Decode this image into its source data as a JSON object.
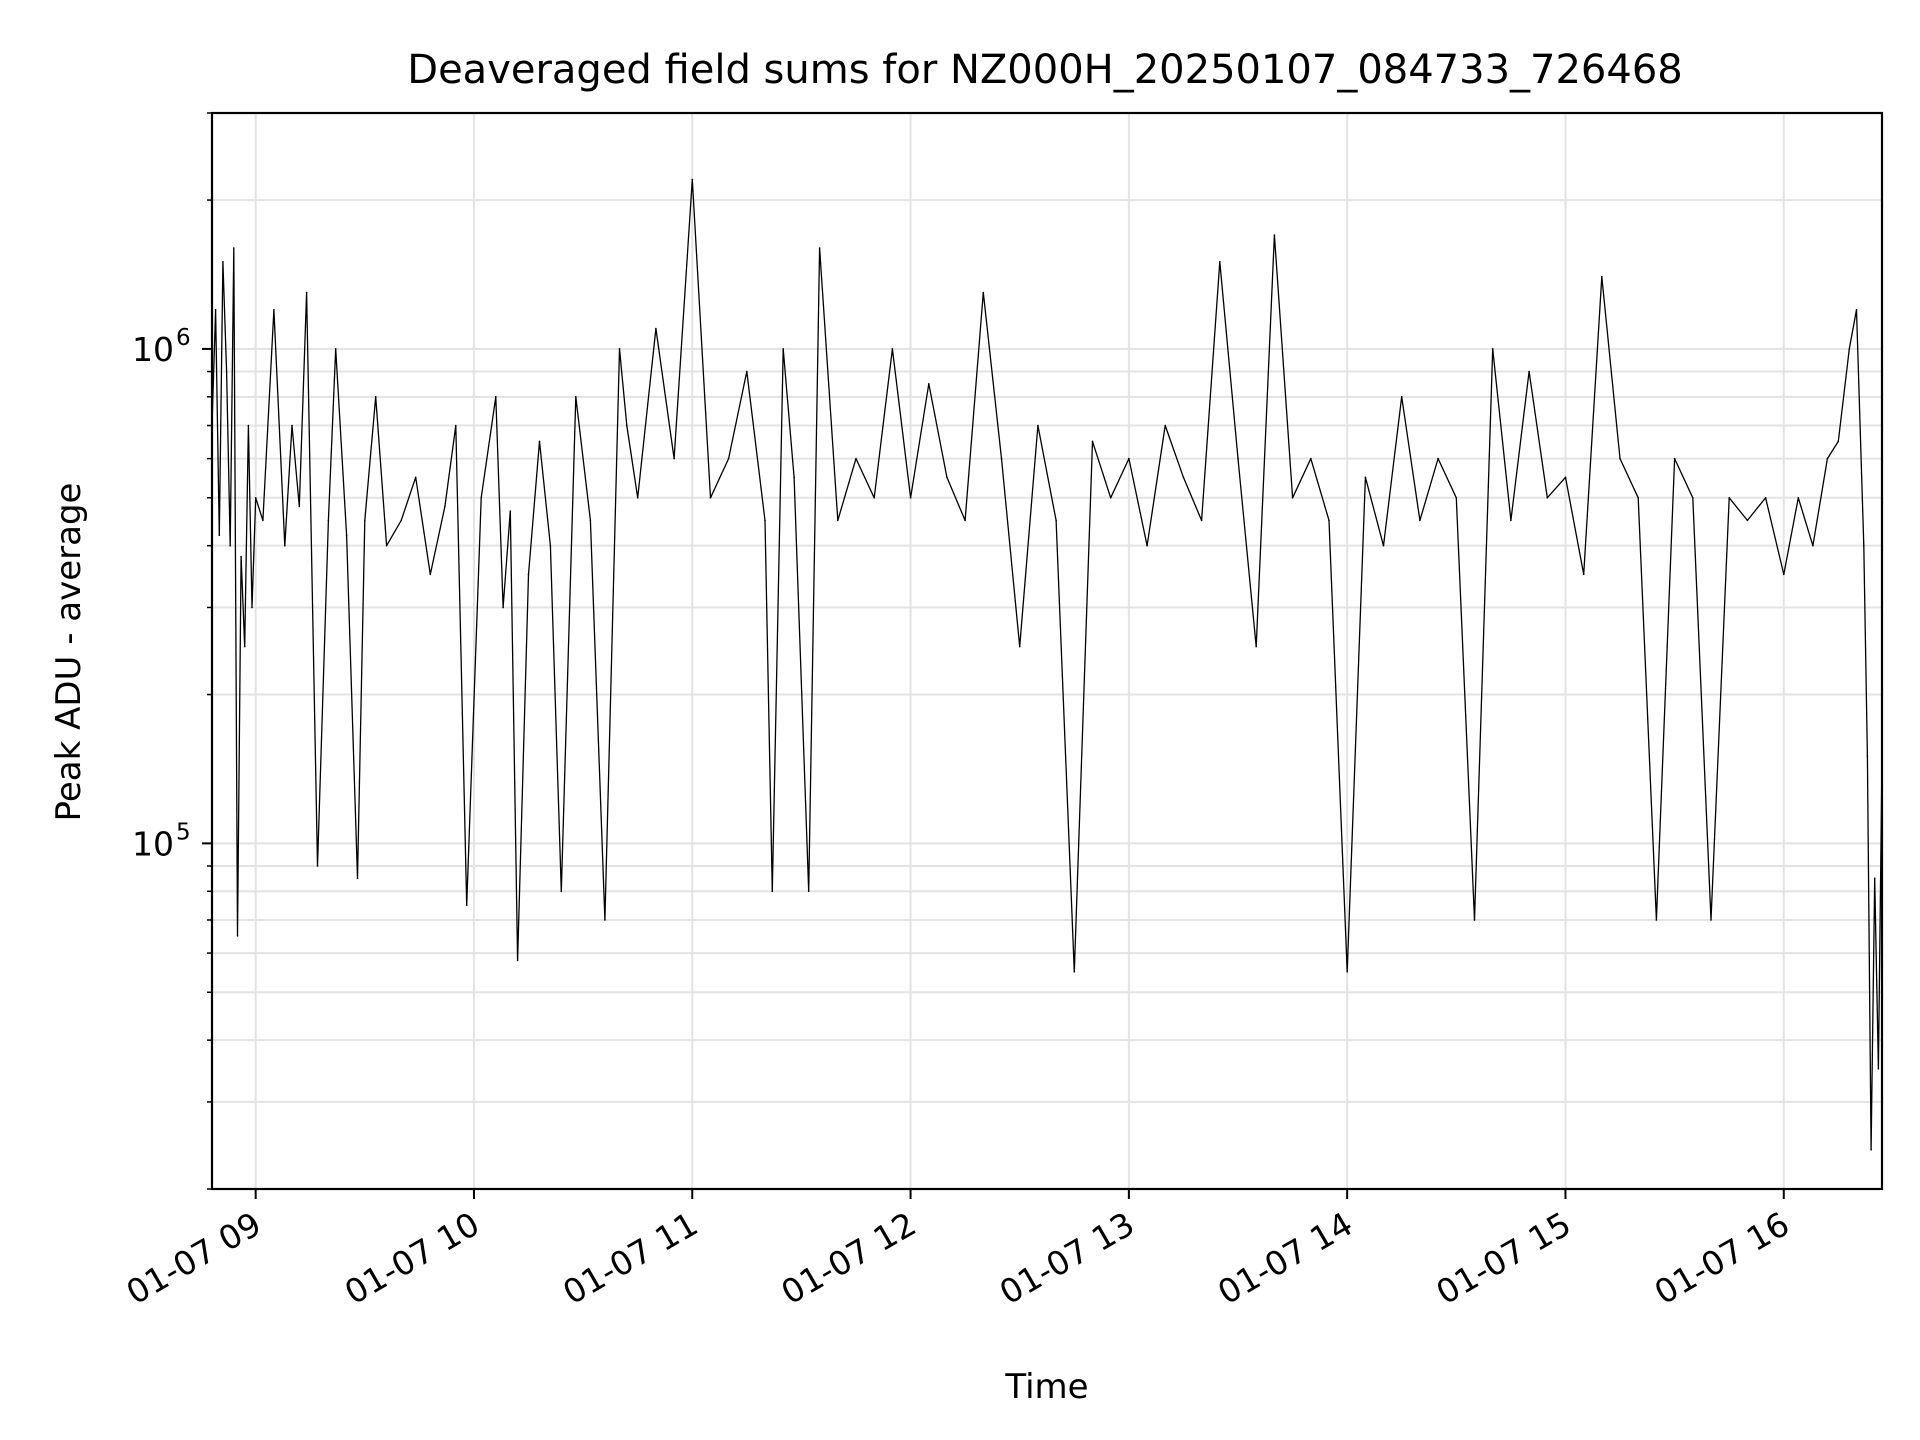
{
  "chart_data": {
    "type": "line",
    "title": "Deaveraged field sums for NZ000H_20250107_084733_726468",
    "xlabel": "Time",
    "ylabel": "Peak ADU - average",
    "yscale": "log",
    "ylim": [
      20000,
      3000000
    ],
    "xlim": [
      "2025-01-07 08:48",
      "2025-01-07 16:27"
    ],
    "grid": true,
    "line_color": "#000000",
    "grid_color": "#e3e3e3",
    "x_ticks": [
      {
        "value": "2025-01-07 09:00",
        "label": "01-07 09"
      },
      {
        "value": "2025-01-07 10:00",
        "label": "01-07 10"
      },
      {
        "value": "2025-01-07 11:00",
        "label": "01-07 11"
      },
      {
        "value": "2025-01-07 12:00",
        "label": "01-07 12"
      },
      {
        "value": "2025-01-07 13:00",
        "label": "01-07 13"
      },
      {
        "value": "2025-01-07 14:00",
        "label": "01-07 14"
      },
      {
        "value": "2025-01-07 15:00",
        "label": "01-07 15"
      },
      {
        "value": "2025-01-07 16:00",
        "label": "01-07 16"
      }
    ],
    "y_ticks": [
      {
        "value": 100000,
        "label_base": "10",
        "label_exp": "5"
      },
      {
        "value": 1000000,
        "label_base": "10",
        "label_exp": "6"
      }
    ],
    "series": [
      {
        "x": [
          "2025-01-07 08:48",
          "2025-01-07 08:49",
          "2025-01-07 08:50",
          "2025-01-07 08:51",
          "2025-01-07 08:52",
          "2025-01-07 08:53",
          "2025-01-07 08:54",
          "2025-01-07 08:55",
          "2025-01-07 08:56",
          "2025-01-07 08:57",
          "2025-01-07 08:58",
          "2025-01-07 08:59",
          "2025-01-07 09:00",
          "2025-01-07 09:02",
          "2025-01-07 09:05",
          "2025-01-07 09:08",
          "2025-01-07 09:10",
          "2025-01-07 09:12",
          "2025-01-07 09:14",
          "2025-01-07 09:17",
          "2025-01-07 09:20",
          "2025-01-07 09:22",
          "2025-01-07 09:25",
          "2025-01-07 09:28",
          "2025-01-07 09:30",
          "2025-01-07 09:33",
          "2025-01-07 09:36",
          "2025-01-07 09:40",
          "2025-01-07 09:44",
          "2025-01-07 09:48",
          "2025-01-07 09:52",
          "2025-01-07 09:55",
          "2025-01-07 09:58",
          "2025-01-07 10:02",
          "2025-01-07 10:06",
          "2025-01-07 10:08",
          "2025-01-07 10:10",
          "2025-01-07 10:12",
          "2025-01-07 10:15",
          "2025-01-07 10:18",
          "2025-01-07 10:21",
          "2025-01-07 10:24",
          "2025-01-07 10:28",
          "2025-01-07 10:32",
          "2025-01-07 10:36",
          "2025-01-07 10:40",
          "2025-01-07 10:42",
          "2025-01-07 10:45",
          "2025-01-07 10:50",
          "2025-01-07 10:55",
          "2025-01-07 11:00",
          "2025-01-07 11:05",
          "2025-01-07 11:10",
          "2025-01-07 11:15",
          "2025-01-07 11:20",
          "2025-01-07 11:22",
          "2025-01-07 11:25",
          "2025-01-07 11:28",
          "2025-01-07 11:32",
          "2025-01-07 11:35",
          "2025-01-07 11:40",
          "2025-01-07 11:45",
          "2025-01-07 11:50",
          "2025-01-07 11:55",
          "2025-01-07 12:00",
          "2025-01-07 12:05",
          "2025-01-07 12:10",
          "2025-01-07 12:15",
          "2025-01-07 12:20",
          "2025-01-07 12:25",
          "2025-01-07 12:30",
          "2025-01-07 12:35",
          "2025-01-07 12:40",
          "2025-01-07 12:45",
          "2025-01-07 12:50",
          "2025-01-07 12:55",
          "2025-01-07 13:00",
          "2025-01-07 13:05",
          "2025-01-07 13:10",
          "2025-01-07 13:15",
          "2025-01-07 13:20",
          "2025-01-07 13:25",
          "2025-01-07 13:30",
          "2025-01-07 13:35",
          "2025-01-07 13:40",
          "2025-01-07 13:45",
          "2025-01-07 13:50",
          "2025-01-07 13:55",
          "2025-01-07 14:00",
          "2025-01-07 14:05",
          "2025-01-07 14:10",
          "2025-01-07 14:15",
          "2025-01-07 14:20",
          "2025-01-07 14:25",
          "2025-01-07 14:30",
          "2025-01-07 14:35",
          "2025-01-07 14:40",
          "2025-01-07 14:45",
          "2025-01-07 14:50",
          "2025-01-07 14:55",
          "2025-01-07 15:00",
          "2025-01-07 15:05",
          "2025-01-07 15:10",
          "2025-01-07 15:15",
          "2025-01-07 15:20",
          "2025-01-07 15:25",
          "2025-01-07 15:30",
          "2025-01-07 15:35",
          "2025-01-07 15:40",
          "2025-01-07 15:45",
          "2025-01-07 15:50",
          "2025-01-07 15:55",
          "2025-01-07 16:00",
          "2025-01-07 16:04",
          "2025-01-07 16:08",
          "2025-01-07 16:12",
          "2025-01-07 16:15",
          "2025-01-07 16:18",
          "2025-01-07 16:20",
          "2025-01-07 16:22",
          "2025-01-07 16:23",
          "2025-01-07 16:24",
          "2025-01-07 16:25",
          "2025-01-07 16:26",
          "2025-01-07 16:27"
        ],
        "y": [
          700000,
          1200000,
          420000,
          1500000,
          900000,
          400000,
          1600000,
          65000,
          380000,
          250000,
          700000,
          300000,
          500000,
          450000,
          1200000,
          400000,
          700000,
          480000,
          1300000,
          90000,
          450000,
          1000000,
          420000,
          85000,
          450000,
          800000,
          400000,
          450000,
          550000,
          350000,
          480000,
          700000,
          75000,
          500000,
          800000,
          300000,
          470000,
          58000,
          350000,
          650000,
          400000,
          80000,
          800000,
          450000,
          70000,
          1000000,
          700000,
          500000,
          1100000,
          600000,
          2200000,
          500000,
          600000,
          900000,
          450000,
          80000,
          1000000,
          550000,
          80000,
          1600000,
          450000,
          600000,
          500000,
          1000000,
          500000,
          850000,
          550000,
          450000,
          1300000,
          600000,
          250000,
          700000,
          450000,
          55000,
          650000,
          500000,
          600000,
          400000,
          700000,
          550000,
          450000,
          1500000,
          600000,
          250000,
          1700000,
          500000,
          600000,
          450000,
          55000,
          550000,
          400000,
          800000,
          450000,
          600000,
          500000,
          70000,
          1000000,
          450000,
          900000,
          500000,
          550000,
          350000,
          1400000,
          600000,
          500000,
          70000,
          600000,
          500000,
          70000,
          500000,
          450000,
          500000,
          350000,
          500000,
          400000,
          600000,
          650000,
          1000000,
          1200000,
          400000,
          150000,
          24000,
          85000,
          35000,
          150000
        ]
      }
    ]
  }
}
